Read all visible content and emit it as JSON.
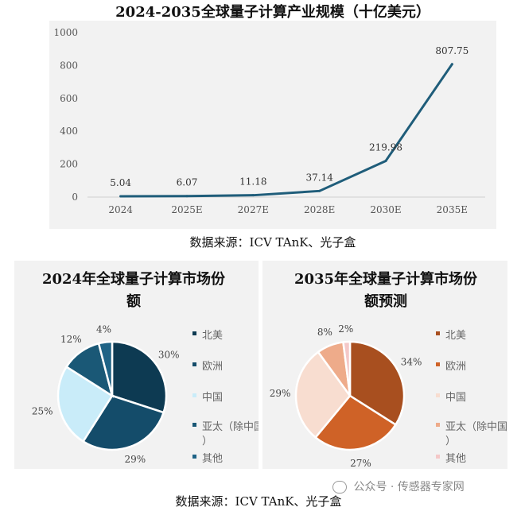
{
  "line_chart": {
    "title": "2024-2035全球量子计算产业规模（十亿美元）",
    "source": "数据来源：ICV TAnK、光子盒",
    "color": "#1f5d7a"
  },
  "pie_left": {
    "title_line1": "2024年全球量子计算市场份",
    "title_line2": "额"
  },
  "pie_right": {
    "title_line1": "2035年全球量子计算市场份",
    "title_line2": "额预测"
  },
  "bottom_source": "数据来源：ICV TAnK、光子盒",
  "watermark": "公众号 · 传感器专家网",
  "chart_data": [
    {
      "type": "line",
      "title": "2024-2035全球量子计算产业规模（十亿美元）",
      "categories": [
        "2024",
        "2025E",
        "2027E",
        "2028E",
        "2030E",
        "2035E"
      ],
      "values": [
        5.04,
        6.07,
        11.18,
        37.14,
        219.98,
        807.75
      ],
      "data_labels": [
        "5.04",
        "6.07",
        "11.18",
        "37.14",
        "219.98",
        "807.75"
      ],
      "ylim": [
        0,
        1000
      ],
      "yticks": [
        0,
        200,
        400,
        600,
        800,
        1000
      ],
      "grid": false
    },
    {
      "type": "pie",
      "title": "2024年全球量子计算市场份额",
      "labels": [
        "北美",
        "欧洲",
        "中国",
        "亚太（除中国）",
        "其他"
      ],
      "values": [
        30,
        29,
        25,
        12,
        4
      ],
      "value_labels": [
        "30%",
        "29%",
        "25%",
        "12%",
        "4%"
      ],
      "colors": [
        "#0d3a52",
        "#144c6a",
        "#c9ecf9",
        "#1a5876",
        "#1f6386"
      ],
      "legend": "right"
    },
    {
      "type": "pie",
      "title": "2035年全球量子计算市场份额预测",
      "labels": [
        "北美",
        "欧洲",
        "中国",
        "亚太（除中国）",
        "其他"
      ],
      "values": [
        34,
        27,
        29,
        8,
        2
      ],
      "value_labels": [
        "34%",
        "27%",
        "29%",
        "8%",
        "2%"
      ],
      "colors": [
        "#a84f1f",
        "#cf6227",
        "#f8ddd0",
        "#eeab8a",
        "#f4c8c8"
      ],
      "legend": "right"
    }
  ]
}
